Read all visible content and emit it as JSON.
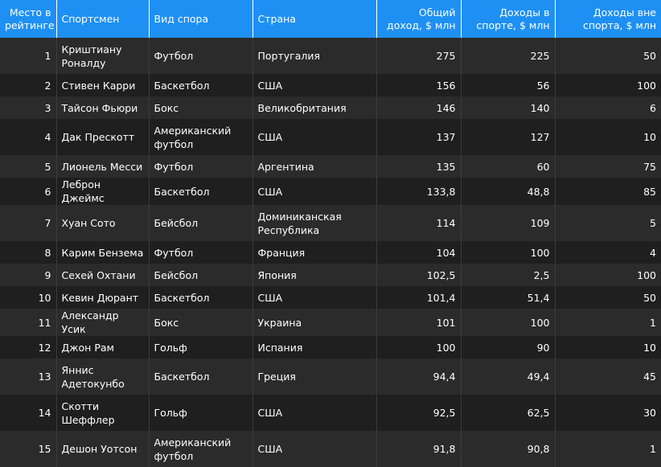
{
  "headers": [
    "Место в рейтинге",
    "Спортсмен",
    "Вид спора",
    "Страна",
    "Общий доход, $ млн",
    "Доходы в спорте, $ млн",
    "Доходы вне спорта, $ млн"
  ],
  "rows": [
    [
      "1",
      "Криштиану Роналду",
      "Футбол",
      "Португалия",
      "275",
      "225",
      "50"
    ],
    [
      "2",
      "Стивен Карри",
      "Баскетбол",
      "США",
      "156",
      "56",
      "100"
    ],
    [
      "3",
      "Тайсон Фьюри",
      "Бокс",
      "Великобритания",
      "146",
      "140",
      "6"
    ],
    [
      "4",
      "Дак Прескотт",
      "Американский футбол",
      "США",
      "137",
      "127",
      "10"
    ],
    [
      "5",
      "Лионель Месси",
      "Футбол",
      "Аргентина",
      "135",
      "60",
      "75"
    ],
    [
      "6",
      "Леброн Джеймс",
      "Баскетбол",
      "США",
      "133,8",
      "48,8",
      "85"
    ],
    [
      "7",
      "Хуан Сото",
      "Бейсбол",
      "Доминиканская Республика",
      "114",
      "109",
      "5"
    ],
    [
      "8",
      "Карим Бензема",
      "Футбол",
      "Франция",
      "104",
      "100",
      "4"
    ],
    [
      "9",
      "Сехей Охтани",
      "Бейсбол",
      "Япония",
      "102,5",
      "2,5",
      "100"
    ],
    [
      "10",
      "Кевин Дюрант",
      "Баскетбол",
      "США",
      "101,4",
      "51,4",
      "50"
    ],
    [
      "11",
      "Александр Усик",
      "Бокс",
      "Украина",
      "101",
      "100",
      "1"
    ],
    [
      "12",
      "Джон Рам",
      "Гольф",
      "Испания",
      "100",
      "90",
      "10"
    ],
    [
      "13",
      "Яннис Адетокунбо",
      "Баскетбол",
      "Греция",
      "94,4",
      "49,4",
      "45"
    ],
    [
      "14",
      "Скотти Шеффлер",
      "Гольф",
      "США",
      "92,5",
      "62,5",
      "30"
    ],
    [
      "15",
      "Дешон Уотсон",
      "Американский футбол",
      "США",
      "91,8",
      "90,8",
      "1"
    ]
  ],
  "colors": {
    "header_bg": "#1e90f3",
    "row_odd": "#2b2b2b",
    "row_even": "#1f1f1f",
    "text": "#ffffff"
  }
}
